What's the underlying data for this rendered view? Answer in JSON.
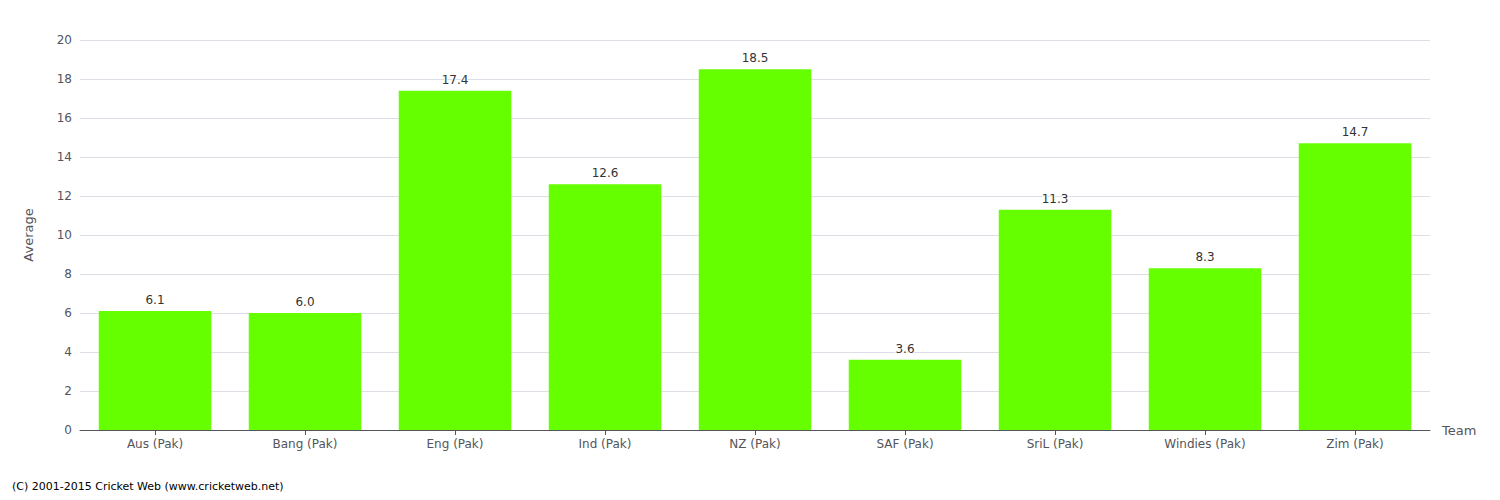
{
  "chart_data": {
    "type": "bar",
    "categories": [
      "Aus (Pak)",
      "Bang (Pak)",
      "Eng (Pak)",
      "Ind (Pak)",
      "NZ (Pak)",
      "SAF (Pak)",
      "SriL (Pak)",
      "Windies (Pak)",
      "Zim (Pak)"
    ],
    "values": [
      6.1,
      6.0,
      17.4,
      12.6,
      18.5,
      3.6,
      11.3,
      8.3,
      14.7
    ],
    "value_labels": [
      "6.1",
      "6.0",
      "17.4",
      "12.6",
      "18.5",
      "3.6",
      "11.3",
      "8.3",
      "14.7"
    ],
    "data_labels": true,
    "color": "#66ff00",
    "xlabel": "Team",
    "ylabel": "Average",
    "ylim": [
      0,
      20
    ],
    "yticks": [
      0,
      2,
      4,
      6,
      8,
      10,
      12,
      14,
      16,
      18,
      20
    ],
    "grid": true,
    "annotations": [
      "(C) 2001-2015 Cricket Web (www.cricketweb.net)"
    ]
  }
}
